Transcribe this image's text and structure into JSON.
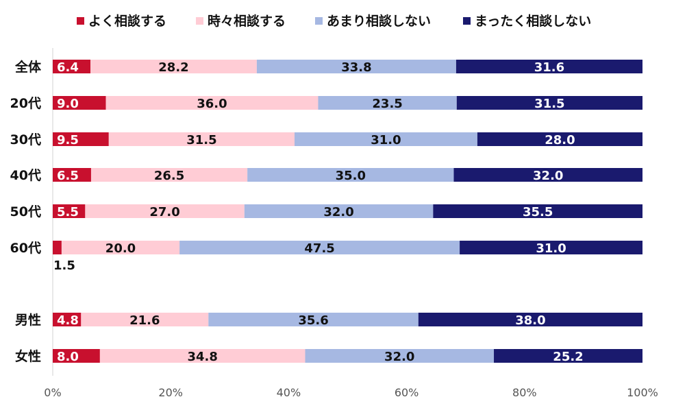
{
  "chart_data": {
    "type": "bar",
    "orientation": "horizontal",
    "stacked": "percent",
    "title": "",
    "xlabel": "",
    "ylabel": "",
    "xlim": [
      0,
      100
    ],
    "xticks": [
      "0%",
      "20%",
      "40%",
      "60%",
      "80%",
      "100%"
    ],
    "legend_position": "top",
    "categories": [
      "全体",
      "20代",
      "30代",
      "40代",
      "50代",
      "60代",
      "男性",
      "女性"
    ],
    "series": [
      {
        "name": "よく相談する",
        "color": "#C8102E",
        "label_color": "#ffffff",
        "values": [
          6.4,
          9.0,
          9.5,
          6.5,
          5.5,
          1.5,
          4.8,
          8.0
        ]
      },
      {
        "name": "時々相談する",
        "color": "#FFCCD5",
        "label_color": "#111111",
        "values": [
          28.2,
          36.0,
          31.5,
          26.5,
          27.0,
          20.0,
          21.6,
          34.8
        ]
      },
      {
        "name": "あまり相談しない",
        "color": "#A6B8E2",
        "label_color": "#111111",
        "values": [
          33.8,
          23.5,
          31.0,
          35.0,
          32.0,
          47.5,
          35.6,
          32.0
        ]
      },
      {
        "name": "まったく相談しない",
        "color": "#1A1A6E",
        "label_color": "#ffffff",
        "values": [
          31.6,
          31.5,
          28.0,
          32.0,
          35.5,
          31.0,
          38.0,
          25.2
        ]
      }
    ],
    "value_labels": [
      [
        "6.4",
        "28.2",
        "33.8",
        "31.6"
      ],
      [
        "9.0",
        "36.0",
        "23.5",
        "31.5"
      ],
      [
        "9.5",
        "31.5",
        "31.0",
        "28.0"
      ],
      [
        "6.5",
        "26.5",
        "35.0",
        "32.0"
      ],
      [
        "5.5",
        "27.0",
        "32.0",
        "35.5"
      ],
      [
        "1.5",
        "20.0",
        "47.5",
        "31.0"
      ],
      [
        "4.8",
        "21.6",
        "35.6",
        "38.0"
      ],
      [
        "8.0",
        "34.8",
        "32.0",
        "25.2"
      ]
    ]
  }
}
